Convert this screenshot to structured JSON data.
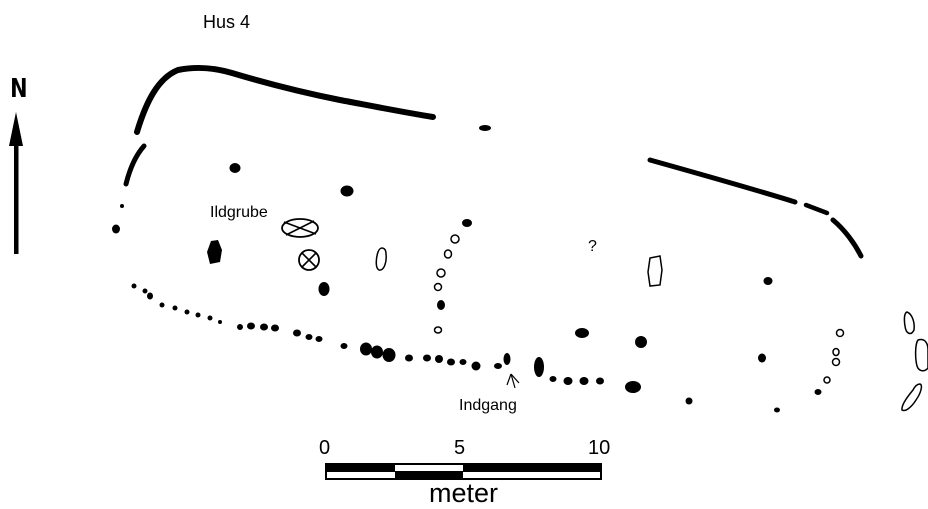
{
  "title": "Hus 4",
  "north_label": "N",
  "labels": {
    "fire_pit": "Ildgrube",
    "entrance": "Indgang",
    "uncertain": "?"
  },
  "scale_bar": {
    "ticks": [
      "0",
      "5",
      "10"
    ],
    "unit": "meter"
  }
}
